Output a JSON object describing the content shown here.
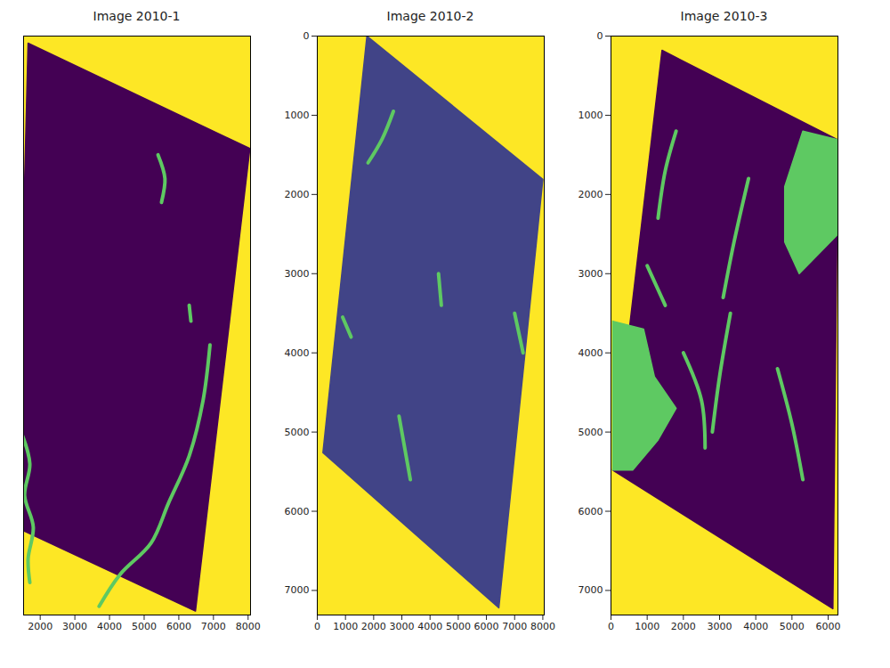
{
  "chart_data": [
    {
      "type": "image",
      "title": "Image 2010-1",
      "xlim": [
        1520,
        8070
      ],
      "ylim": [
        7310,
        0
      ],
      "xticks": [
        2000,
        3000,
        4000,
        5000,
        6000,
        7000,
        8000
      ],
      "tick_labels": "x",
      "colors": [
        "#fde725",
        "#440154",
        "#5ec962"
      ],
      "footprint": [
        [
          1650,
          90
        ],
        [
          8050,
          1420
        ],
        [
          6480,
          7260
        ],
        [
          1300,
          6200
        ]
      ],
      "water_lines": [
        [
          [
            1450,
            5000
          ],
          [
            1700,
            5400
          ],
          [
            1550,
            5800
          ],
          [
            1800,
            6200
          ],
          [
            1650,
            6600
          ],
          [
            1700,
            6900
          ]
        ],
        [
          [
            6900,
            3900
          ],
          [
            6700,
            4600
          ],
          [
            6300,
            5300
          ],
          [
            5700,
            5900
          ],
          [
            5200,
            6400
          ],
          [
            4300,
            6800
          ],
          [
            3700,
            7200
          ]
        ],
        [
          [
            5400,
            1500
          ],
          [
            5600,
            1800
          ],
          [
            5500,
            2100
          ]
        ],
        [
          [
            6300,
            3400
          ],
          [
            6350,
            3600
          ]
        ]
      ],
      "water_areas": []
    },
    {
      "type": "image",
      "title": "Image 2010-2",
      "xlim": [
        0,
        8050
      ],
      "ylim": [
        7310,
        0
      ],
      "xticks": [
        0,
        1000,
        2000,
        3000,
        4000,
        5000,
        6000,
        7000,
        8000
      ],
      "yticks": [
        0,
        1000,
        2000,
        3000,
        4000,
        5000,
        6000,
        7000
      ],
      "colors": [
        "#fde725",
        "#414487",
        "#5ec962"
      ],
      "footprint": [
        [
          1760,
          0
        ],
        [
          8000,
          1810
        ],
        [
          6440,
          7220
        ],
        [
          200,
          5260
        ]
      ],
      "water_lines": [
        [
          [
            1800,
            1600
          ],
          [
            2300,
            1300
          ],
          [
            2700,
            950
          ]
        ],
        [
          [
            7000,
            3500
          ],
          [
            7300,
            4000
          ]
        ],
        [
          [
            900,
            3550
          ],
          [
            1200,
            3800
          ]
        ],
        [
          [
            2900,
            4800
          ],
          [
            3100,
            5200
          ],
          [
            3300,
            5600
          ]
        ],
        [
          [
            4300,
            3000
          ],
          [
            4400,
            3400
          ]
        ]
      ],
      "water_areas": []
    },
    {
      "type": "image",
      "title": "Image 2010-3",
      "xlim": [
        0,
        6270
      ],
      "ylim": [
        7310,
        0
      ],
      "xticks": [
        0,
        1000,
        2000,
        3000,
        4000,
        5000,
        6000
      ],
      "yticks": [
        0,
        1000,
        2000,
        3000,
        4000,
        5000,
        6000,
        7000
      ],
      "colors": [
        "#fde725",
        "#440154",
        "#5ec962"
      ],
      "footprint": [
        [
          1410,
          180
        ],
        [
          6270,
          1310
        ],
        [
          6130,
          7230
        ],
        [
          50,
          5480
        ]
      ],
      "water_lines": [
        [
          [
            3800,
            1800
          ],
          [
            3400,
            2600
          ],
          [
            3100,
            3300
          ]
        ],
        [
          [
            3300,
            3500
          ],
          [
            3000,
            4300
          ],
          [
            2800,
            5000
          ]
        ],
        [
          [
            1800,
            1200
          ],
          [
            1500,
            1700
          ],
          [
            1300,
            2300
          ]
        ],
        [
          [
            2000,
            4000
          ],
          [
            2500,
            4600
          ],
          [
            2600,
            5200
          ]
        ],
        [
          [
            4600,
            4200
          ],
          [
            5000,
            4900
          ],
          [
            5300,
            5600
          ]
        ],
        [
          [
            1000,
            2900
          ],
          [
            1500,
            3400
          ]
        ]
      ],
      "water_areas": [
        [
          [
            4800,
            1900
          ],
          [
            5300,
            1200
          ],
          [
            6270,
            1310
          ],
          [
            6270,
            2500
          ],
          [
            5200,
            3000
          ],
          [
            4800,
            2600
          ]
        ],
        [
          [
            50,
            3600
          ],
          [
            900,
            3700
          ],
          [
            1200,
            4300
          ],
          [
            1800,
            4700
          ],
          [
            1300,
            5100
          ],
          [
            600,
            5480
          ],
          [
            50,
            5480
          ]
        ]
      ]
    }
  ]
}
